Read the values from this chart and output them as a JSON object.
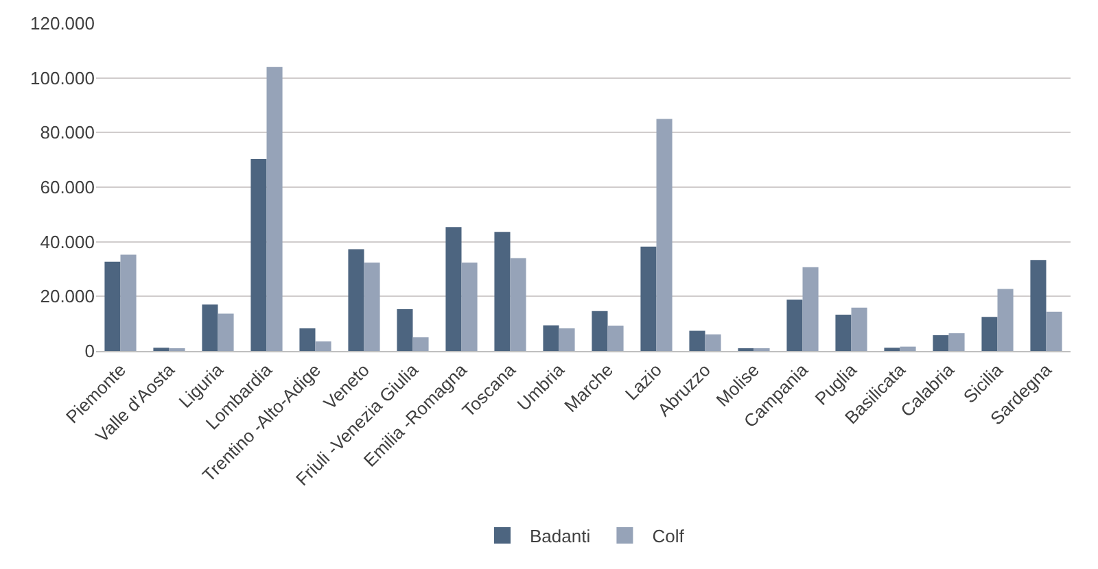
{
  "chart_data": {
    "type": "bar",
    "categories": [
      "Piemonte",
      "Valle d'Aosta",
      "Liguria",
      "Lombardia",
      "Trentino -Alto-Adige",
      "Veneto",
      "Friuli -Venezia Giulia",
      "Emilia -Romagna",
      "Toscana",
      "Umbria",
      "Marche",
      "Lazio",
      "Abruzzo",
      "Molise",
      "Campania",
      "Puglia",
      "Basilicata",
      "Calabria",
      "Sicilia",
      "Sardegna"
    ],
    "series": [
      {
        "name": "Badanti",
        "color": "#4d6580",
        "values": [
          32700,
          1200,
          17000,
          70300,
          8300,
          37300,
          15300,
          45400,
          43600,
          9400,
          14600,
          38200,
          7400,
          1000,
          18800,
          13300,
          1200,
          5800,
          12500,
          33300
        ]
      },
      {
        "name": "Colf",
        "color": "#96a3b8",
        "values": [
          35300,
          600,
          13700,
          104000,
          3500,
          32400,
          5000,
          32400,
          34000,
          8300,
          9300,
          85000,
          6100,
          600,
          30700,
          15900,
          1600,
          6500,
          22700,
          14400
        ]
      }
    ],
    "ylim": [
      0,
      120000
    ],
    "yticks": [
      {
        "value": 0,
        "label": "0"
      },
      {
        "value": 20000,
        "label": "20.000"
      },
      {
        "value": 40000,
        "label": "40.000"
      },
      {
        "value": 60000,
        "label": "60.000"
      },
      {
        "value": 80000,
        "label": "80.000"
      },
      {
        "value": 100000,
        "label": "100.000"
      },
      {
        "value": 120000,
        "label": "120.000"
      }
    ],
    "grid": "y",
    "legend": "bottom"
  }
}
